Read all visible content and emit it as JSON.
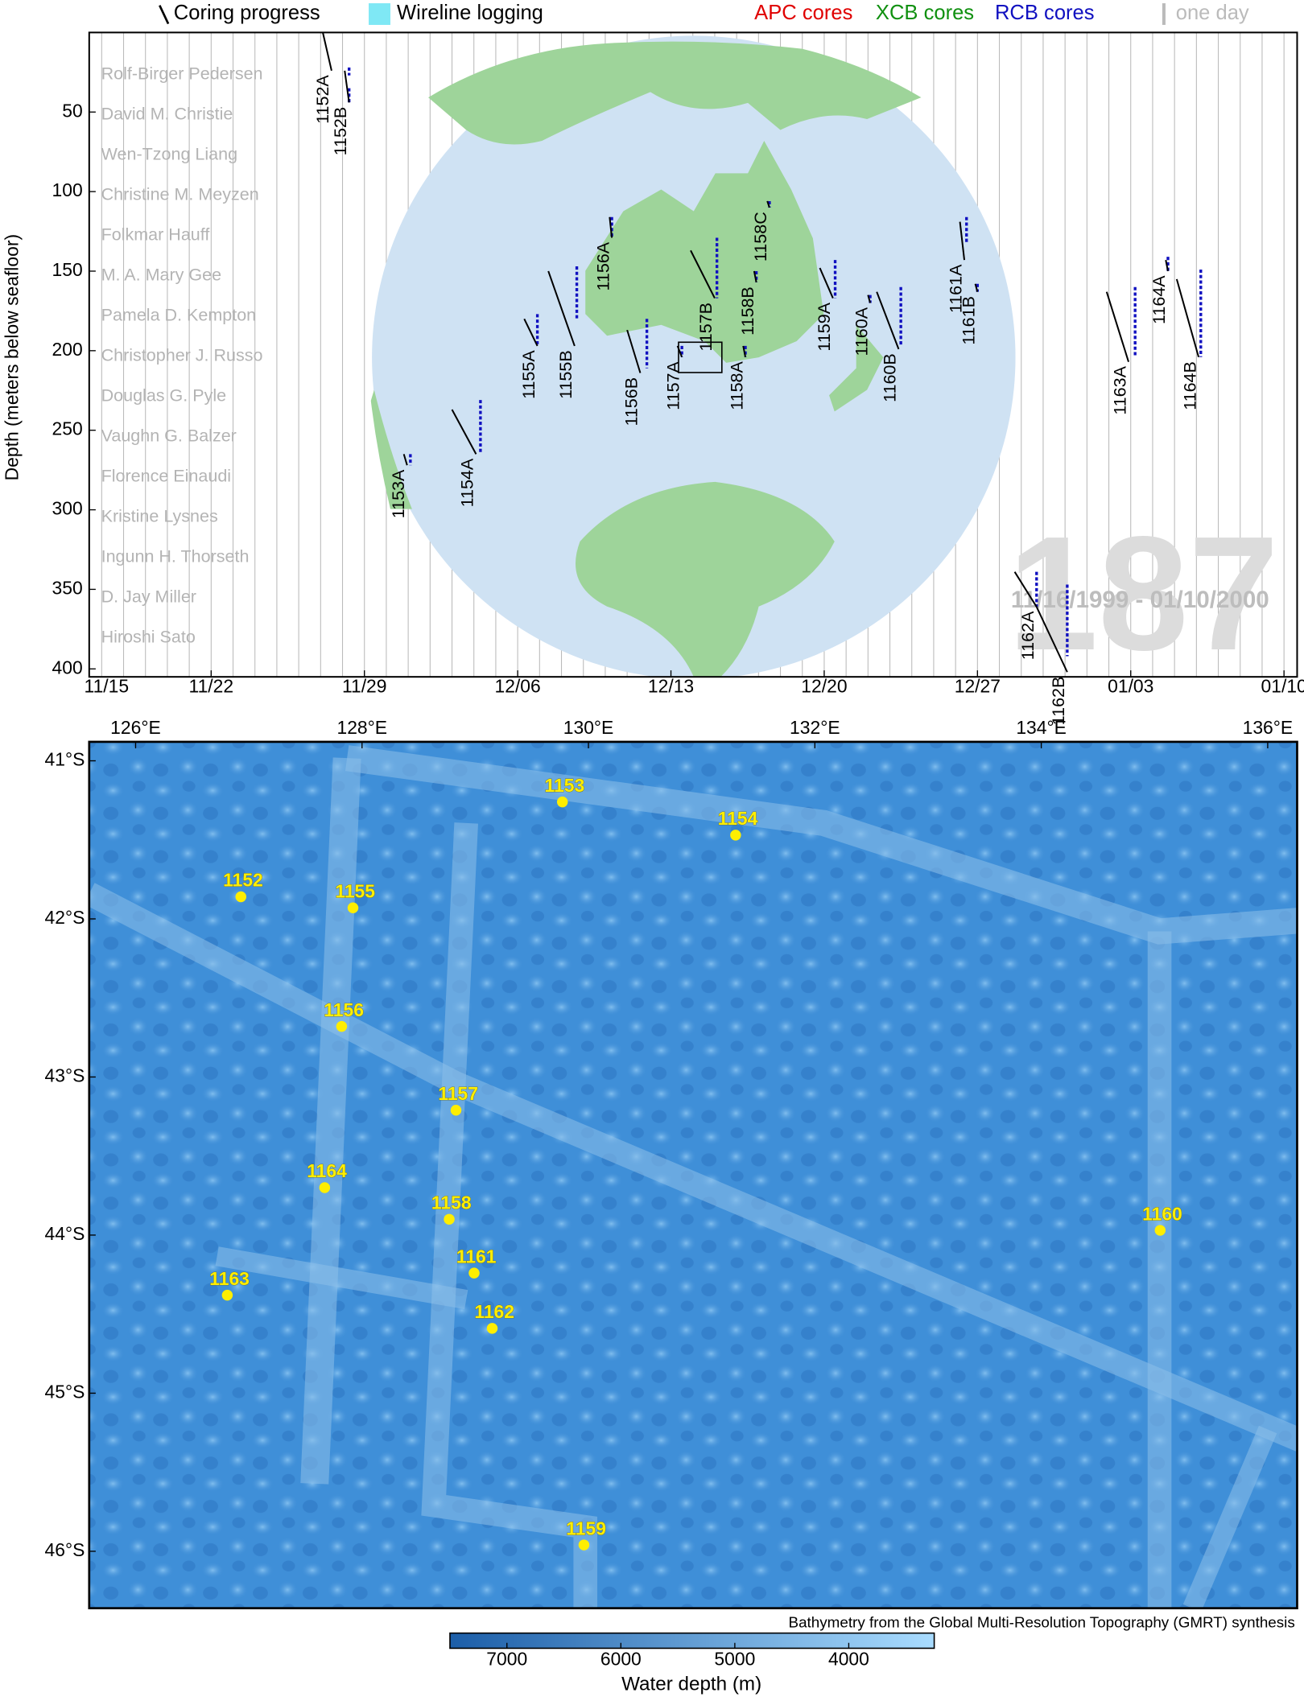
{
  "chart_data": [
    {
      "type": "line",
      "ylabel": "Depth (meters below seafloor)",
      "legend": [
        {
          "label": "Coring progress",
          "color": "#000000"
        },
        {
          "label": "Wireline logging",
          "color": "#7fe8f5"
        },
        {
          "label": "APC cores",
          "color": "#e00000"
        },
        {
          "label": "XCB cores",
          "color": "#109010"
        },
        {
          "label": "RCB cores",
          "color": "#1010c0"
        },
        {
          "label": "one day",
          "color": "#bbbbbb"
        }
      ],
      "scientists": [
        "Rolf-Birger Pedersen",
        "David M. Christie",
        "Wen-Tzong Liang",
        "Christine M. Meyzen",
        "Folkmar Hauff",
        "M. A. Mary Gee",
        "Pamela D. Kempton",
        "Christopher J. Russo",
        "Douglas G. Pyle",
        "Vaughn G. Balzer",
        "Florence Einaudi",
        "Kristine Lysnes",
        "Ingunn H. Thorseth",
        "D. Jay Miller",
        "Hiroshi Sato"
      ],
      "big_label": "187",
      "date_range": "11/16/1999 - 01/10/2000",
      "xlim": [
        1.43,
        56.6
      ],
      "xticks": [
        {
          "value": 0,
          "label": "11/15"
        },
        {
          "value": 7,
          "label": "11/22"
        },
        {
          "value": 14,
          "label": "11/29"
        },
        {
          "value": 21,
          "label": "12/06"
        },
        {
          "value": 28,
          "label": "12/13"
        },
        {
          "value": 35,
          "label": "12/20"
        },
        {
          "value": 42,
          "label": "12/27"
        },
        {
          "value": 49,
          "label": "01/03"
        },
        {
          "value": 56,
          "label": "01/10"
        }
      ],
      "ylim": [
        0,
        405
      ],
      "yinvert": true,
      "yticks": [
        50,
        100,
        150,
        200,
        250,
        300,
        350,
        400
      ],
      "day_lines": true,
      "series": [
        {
          "name": "1152A",
          "x": [
            12.1,
            12.5
          ],
          "values": [
            0,
            24
          ],
          "rcb_x": 13.3,
          "rcb": [
            22,
            27
          ]
        },
        {
          "name": "1152B",
          "x": [
            13.1,
            13.3
          ],
          "values": [
            24,
            44
          ],
          "rcb_x": 13.3,
          "rcb": [
            35,
            44
          ]
        },
        {
          "name": "1153A",
          "x": [
            15.8,
            15.95
          ],
          "values": [
            265,
            272
          ],
          "rcb_x": 16.1,
          "rcb": [
            265,
            272
          ]
        },
        {
          "name": "1154A",
          "x": [
            18.0,
            19.1
          ],
          "values": [
            237,
            265
          ],
          "rcb_x": 19.3,
          "rcb": [
            231,
            264
          ]
        },
        {
          "name": "1155A",
          "x": [
            21.3,
            21.9
          ],
          "values": [
            180,
            197
          ],
          "rcb_x": 21.9,
          "rcb": [
            177,
            196
          ]
        },
        {
          "name": "1155B",
          "x": [
            22.4,
            23.6
          ],
          "values": [
            150,
            197
          ],
          "rcb_x": 23.7,
          "rcb": [
            147,
            181
          ]
        },
        {
          "name": "1156A",
          "x": [
            25.2,
            25.3
          ],
          "values": [
            116,
            129
          ],
          "rcb_x": 25.3,
          "rcb": [
            116,
            129
          ]
        },
        {
          "name": "1156B",
          "x": [
            26.0,
            26.6
          ],
          "values": [
            187,
            214
          ],
          "rcb_x": 26.9,
          "rcb": [
            180,
            211
          ]
        },
        {
          "name": "1157A",
          "x": [
            28.3,
            28.5
          ],
          "values": [
            197,
            204
          ],
          "rcb_x": 28.5,
          "rcb": [
            197,
            204
          ]
        },
        {
          "name": "1157B",
          "x": [
            28.9,
            30.0
          ],
          "values": [
            137,
            167
          ],
          "rcb_x": 30.1,
          "rcb": [
            129,
            167
          ]
        },
        {
          "name": "1158A",
          "x": [
            31.3,
            31.4
          ],
          "values": [
            197,
            204
          ],
          "rcb_x": 31.4,
          "rcb": [
            197,
            204
          ]
        },
        {
          "name": "1158B",
          "x": [
            31.8,
            31.9
          ],
          "values": [
            150,
            157
          ],
          "rcb_x": 31.9,
          "rcb": [
            150,
            157
          ]
        },
        {
          "name": "1158C",
          "x": [
            32.4,
            32.5
          ],
          "values": [
            106,
            110
          ],
          "rcb_x": 32.5,
          "rcb": [
            106,
            110
          ]
        },
        {
          "name": "1159A",
          "x": [
            34.8,
            35.4
          ],
          "values": [
            148,
            167
          ],
          "rcb_x": 35.5,
          "rcb": [
            143,
            167
          ]
        },
        {
          "name": "1160A",
          "x": [
            37.0,
            37.1
          ],
          "values": [
            165,
            170
          ],
          "rcb_x": 37.1,
          "rcb": [
            165,
            170
          ]
        },
        {
          "name": "1160B",
          "x": [
            37.4,
            38.4
          ],
          "values": [
            163,
            199
          ],
          "rcb_x": 38.5,
          "rcb": [
            160,
            197
          ]
        },
        {
          "name": "1161A",
          "x": [
            41.2,
            41.4
          ],
          "values": [
            119,
            143
          ],
          "rcb_x": 41.5,
          "rcb": [
            116,
            133
          ]
        },
        {
          "name": "1161B",
          "x": [
            41.9,
            42.0
          ],
          "values": [
            158,
            163
          ],
          "rcb_x": 42.0,
          "rcb": [
            158,
            163
          ]
        },
        {
          "name": "1162A",
          "x": [
            43.7,
            44.7
          ],
          "values": [
            339,
            361
          ],
          "rcb_x": 44.7,
          "rcb": [
            339,
            361
          ]
        },
        {
          "name": "1162B",
          "x": [
            44.7,
            46.1
          ],
          "values": [
            361,
            402
          ],
          "rcb_x": 46.1,
          "rcb": [
            347,
            392
          ]
        },
        {
          "name": "1163A",
          "x": [
            47.9,
            48.9
          ],
          "values": [
            163,
            207
          ],
          "rcb_x": 49.2,
          "rcb": [
            160,
            204
          ]
        },
        {
          "name": "1164A",
          "x": [
            50.6,
            50.7
          ],
          "values": [
            143,
            150
          ],
          "rcb_x": 50.7,
          "rcb": [
            141,
            150
          ]
        },
        {
          "name": "1164B",
          "x": [
            51.1,
            52.1
          ],
          "values": [
            155,
            204
          ],
          "rcb_x": 52.2,
          "rcb": [
            149,
            204
          ]
        }
      ]
    },
    {
      "type": "map",
      "xlim": [
        125.59,
        136.26
      ],
      "ylim": [
        -46.36,
        -40.88
      ],
      "xticks": [
        {
          "value": 126,
          "label": "126°E"
        },
        {
          "value": 128,
          "label": "128°E"
        },
        {
          "value": 130,
          "label": "130°E"
        },
        {
          "value": 132,
          "label": "132°E"
        },
        {
          "value": 134,
          "label": "134°E"
        },
        {
          "value": 136,
          "label": "136°E"
        }
      ],
      "yticks": [
        {
          "value": -41,
          "label": "41°S"
        },
        {
          "value": -42,
          "label": "42°S"
        },
        {
          "value": -43,
          "label": "43°S"
        },
        {
          "value": -44,
          "label": "44°S"
        },
        {
          "value": -45,
          "label": "45°S"
        },
        {
          "value": -46,
          "label": "46°S"
        }
      ],
      "color": "#ffee00",
      "sites": [
        "1152",
        "1155",
        "1153",
        "1154",
        "1156",
        "1157",
        "1164",
        "1158",
        "1160",
        "1161",
        "1163",
        "1162",
        "1159"
      ],
      "lon": [
        126.93,
        127.92,
        129.77,
        131.3,
        127.82,
        128.83,
        127.67,
        128.77,
        135.05,
        128.99,
        126.81,
        129.15,
        129.96
      ],
      "lat": [
        -41.86,
        -41.93,
        -41.26,
        -41.47,
        -42.68,
        -43.21,
        -43.7,
        -43.9,
        -43.97,
        -44.24,
        -44.38,
        -44.59,
        -45.96
      ],
      "credit": "Bathymetry from the Global Multi-Resolution Topography (GMRT) synthesis",
      "colorbar": {
        "label": "Water depth (m)",
        "lim": [
          7500,
          3250
        ],
        "ticks": [
          7000,
          6000,
          5000,
          4000
        ],
        "colors": [
          "#1c5ea8",
          "#a9dcff"
        ]
      }
    }
  ]
}
